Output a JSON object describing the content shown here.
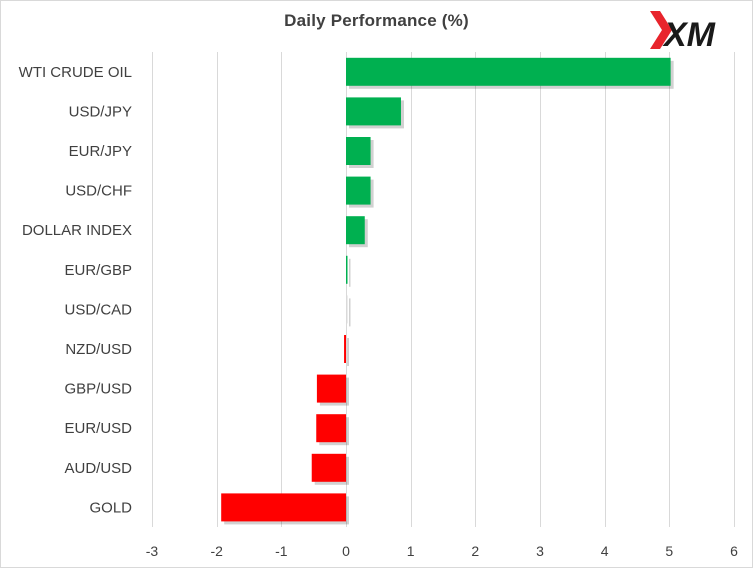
{
  "chart_data": {
    "type": "bar",
    "orientation": "horizontal",
    "title": "Daily Performance  (%)",
    "categories": [
      "WTI CRUDE OIL",
      "USD/JPY",
      "EUR/JPY",
      "USD/CHF",
      "DOLLAR INDEX",
      "EUR/GBP",
      "USD/CAD",
      "NZD/USD",
      "GBP/USD",
      "EUR/USD",
      "AUD/USD",
      "GOLD"
    ],
    "values": [
      5.02,
      0.85,
      0.38,
      0.38,
      0.29,
      0.02,
      0.0,
      -0.03,
      -0.45,
      -0.46,
      -0.53,
      -1.93
    ],
    "xlim": [
      -3,
      6
    ],
    "xticks": [
      "-3",
      "-2",
      "-1",
      "0",
      "1",
      "2",
      "3",
      "4",
      "5",
      "6"
    ],
    "grid": "vertical",
    "colors": {
      "positive": "#00b050",
      "negative": "#ff0000",
      "zero": "#d9d9d9",
      "gridline": "#d9d9d9"
    }
  },
  "logo": {
    "text": "XM",
    "colors": {
      "mark": "#e8242c",
      "text": "#1a1a1a"
    }
  }
}
